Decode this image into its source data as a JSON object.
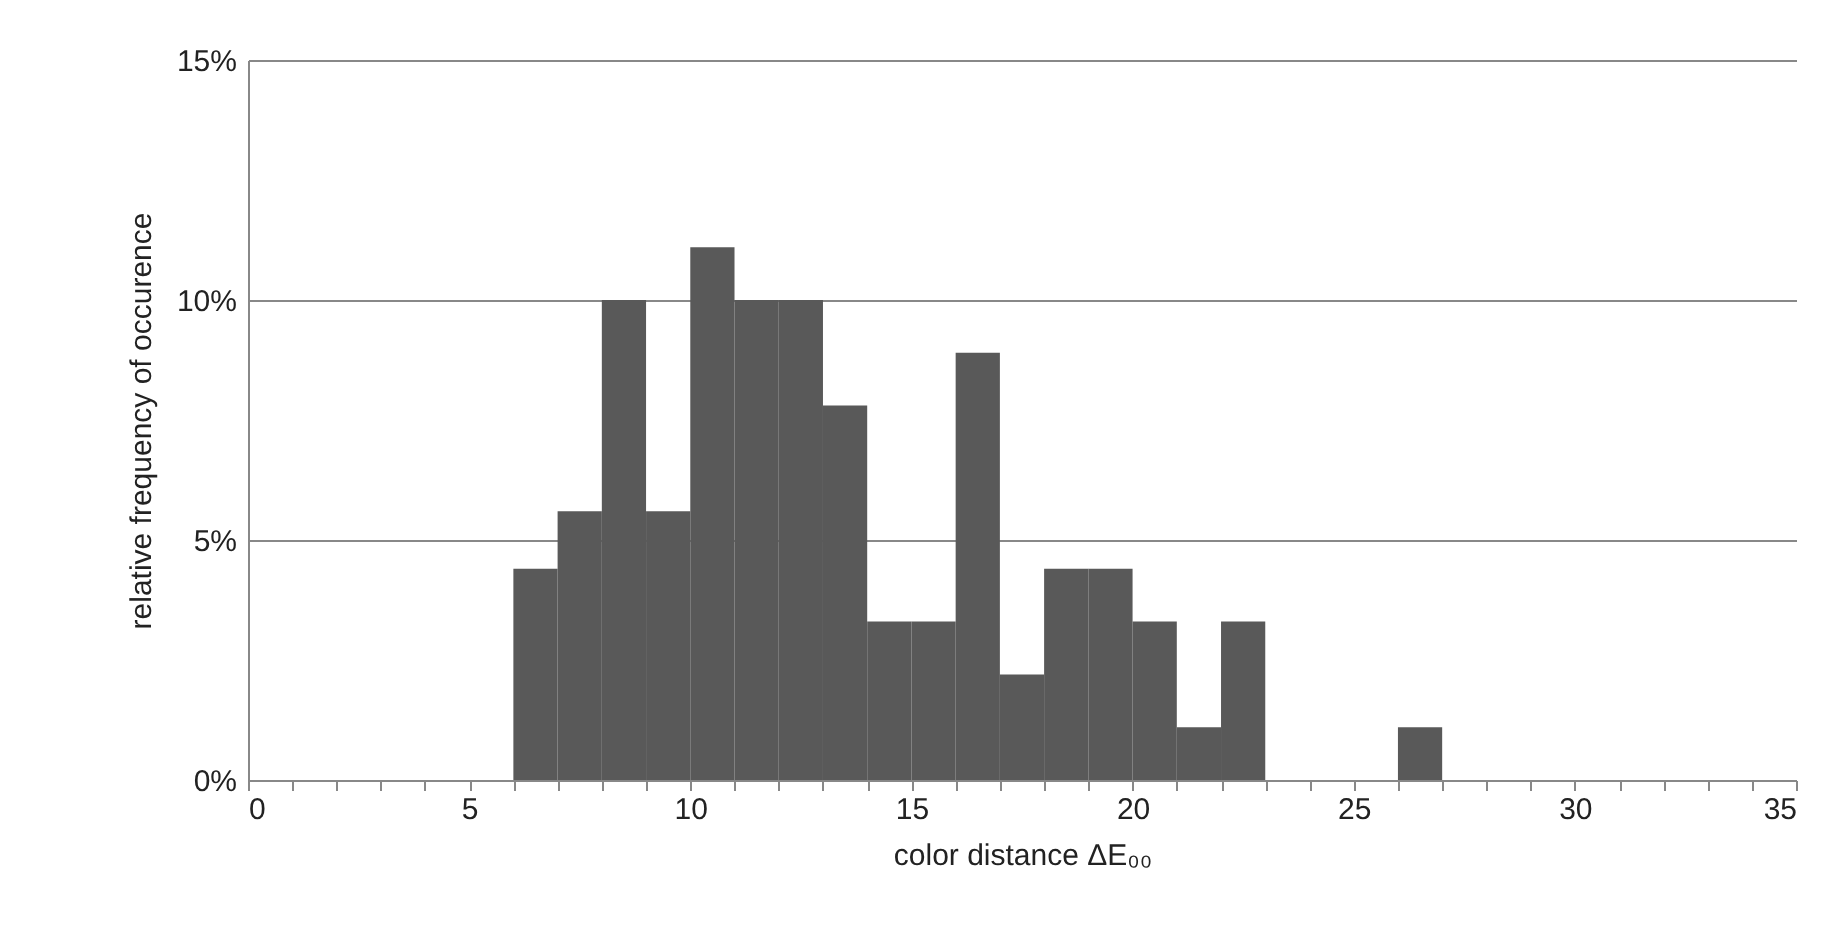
{
  "chart_data": {
    "type": "histogram",
    "xlabel": "color distance ΔE₀₀",
    "ylabel": "relative frequency of occurence",
    "bins": [
      6,
      7,
      8,
      9,
      10,
      11,
      12,
      13,
      14,
      15,
      16,
      17,
      18,
      19,
      20,
      21,
      22,
      23,
      24,
      25,
      26,
      27
    ],
    "values": [
      4.4,
      5.6,
      10,
      5.6,
      11.1,
      10,
      10,
      7.8,
      3.3,
      3.3,
      8.9,
      2.2,
      4.4,
      4.4,
      3.3,
      1.1,
      3.3,
      0,
      0,
      0,
      1.1
    ],
    "color": "#595959",
    "xlim": [
      0,
      35
    ],
    "xticks": [
      0,
      {
        "value": 1,
        "label": null
      },
      {
        "value": 2,
        "label": null
      },
      {
        "value": 3,
        "label": null
      },
      {
        "value": 4,
        "label": null
      },
      5,
      {
        "value": 6,
        "label": null
      },
      {
        "value": 7,
        "label": null
      },
      {
        "value": 8,
        "label": null
      },
      {
        "value": 9,
        "label": null
      },
      10,
      {
        "value": 11,
        "label": null
      },
      {
        "value": 12,
        "label": null
      },
      {
        "value": 13,
        "label": null
      },
      {
        "value": 14,
        "label": null
      },
      15,
      {
        "value": 16,
        "label": null
      },
      {
        "value": 17,
        "label": null
      },
      {
        "value": 18,
        "label": null
      },
      {
        "value": 19,
        "label": null
      },
      20,
      {
        "value": 21,
        "label": null
      },
      {
        "value": 22,
        "label": null
      },
      {
        "value": 23,
        "label": null
      },
      {
        "value": 24,
        "label": null
      },
      25,
      {
        "value": 26,
        "label": null
      },
      {
        "value": 27,
        "label": null
      },
      {
        "value": 28,
        "label": null
      },
      {
        "value": 29,
        "label": null
      },
      30,
      {
        "value": 31,
        "label": null
      },
      {
        "value": 32,
        "label": null
      },
      {
        "value": 33,
        "label": null
      },
      {
        "value": 34,
        "label": null
      },
      35
    ],
    "ylim": [
      0,
      15
    ],
    "yticks": [
      {
        "value": 0,
        "label": "0%"
      },
      {
        "value": 5,
        "label": "5%"
      },
      {
        "value": 10,
        "label": "10%"
      },
      {
        "value": 15,
        "label": "15%"
      }
    ],
    "grid": "y"
  }
}
